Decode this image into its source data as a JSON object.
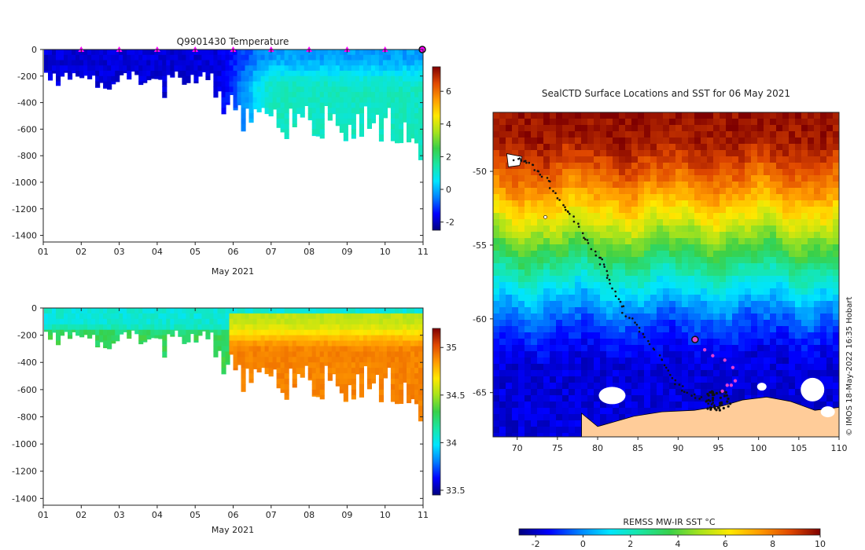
{
  "colors": {
    "jet": [
      "#00007f",
      "#0000ff",
      "#0080ff",
      "#00e5ff",
      "#19e6a5",
      "#38d04a",
      "#a6e31c",
      "#ffe800",
      "#ff9a00",
      "#e04800",
      "#7f0000"
    ],
    "land": "#ffcc99",
    "track": "#111111",
    "marker": "#ff00ff",
    "seal": "#e040d0"
  },
  "chart_data": [
    {
      "type": "heatmap",
      "id": "temperature-section",
      "title": "Q9901430  Temperature",
      "xlabel": "May 2021",
      "x_ticks": [
        "01",
        "02",
        "03",
        "04",
        "05",
        "06",
        "07",
        "08",
        "09",
        "10",
        "11"
      ],
      "xlim": [
        1,
        11
      ],
      "y_ticks": [
        "0",
        "-200",
        "-400",
        "-600",
        "-800",
        "-1000",
        "-1200",
        "-1400"
      ],
      "ylim": [
        -1450,
        0
      ],
      "colorbar": {
        "ticks": [
          "-2",
          "0",
          "2",
          "4",
          "6"
        ],
        "range": [
          -2.5,
          7.5
        ]
      },
      "marker_days": [
        2,
        3,
        4,
        5,
        6,
        7,
        8,
        9,
        10
      ],
      "latest_day": 10.98
    },
    {
      "type": "heatmap",
      "id": "salinity-section",
      "xlabel": "May 2021",
      "x_ticks": [
        "01",
        "02",
        "03",
        "04",
        "05",
        "06",
        "07",
        "08",
        "09",
        "10",
        "11"
      ],
      "xlim": [
        1,
        11
      ],
      "y_ticks": [
        "0",
        "-200",
        "-400",
        "-600",
        "-800",
        "-1000",
        "-1200",
        "-1400"
      ],
      "ylim": [
        -1450,
        0
      ],
      "colorbar": {
        "ticks": [
          "33.5",
          "34",
          "34.5",
          "35"
        ],
        "range": [
          33.45,
          35.2
        ]
      }
    },
    {
      "type": "heatmap",
      "id": "sst-map",
      "title": "SealCTD Surface Locations and SST for 06 May 2021",
      "x_ticks": [
        "70",
        "75",
        "80",
        "85",
        "90",
        "95",
        "100",
        "105",
        "110"
      ],
      "xlim": [
        67,
        110
      ],
      "y_ticks": [
        "-50",
        "-55",
        "-60",
        "-65"
      ],
      "ylim": [
        -68,
        -46
      ],
      "colorbar": {
        "label": "REMSS MW-IR SST °C",
        "ticks": [
          "-2",
          "0",
          "2",
          "4",
          "6",
          "8",
          "10"
        ],
        "range": [
          -2.7,
          10
        ]
      },
      "track": [
        [
          69.8,
          -49.1
        ],
        [
          71,
          -49.3
        ],
        [
          72.5,
          -49.9
        ],
        [
          74,
          -50.8
        ],
        [
          75.5,
          -52.2
        ],
        [
          77,
          -53.2
        ],
        [
          78.5,
          -54.6
        ],
        [
          80,
          -55.8
        ],
        [
          81,
          -56.7
        ],
        [
          82,
          -58.1
        ],
        [
          83.3,
          -59.5
        ],
        [
          85,
          -60.6
        ],
        [
          87,
          -62.0
        ],
        [
          88.5,
          -63.3
        ],
        [
          90,
          -64.5
        ],
        [
          92,
          -65.2
        ],
        [
          94,
          -65.7
        ],
        [
          95,
          -66.1
        ]
      ],
      "recent_positions": [
        [
          93.3,
          -62.1
        ],
        [
          94.3,
          -62.5
        ],
        [
          95.8,
          -62.8
        ],
        [
          96.8,
          -63.3
        ],
        [
          97.1,
          -64.2
        ],
        [
          96.6,
          -64.5
        ],
        [
          96.1,
          -64.5
        ],
        [
          95.5,
          -64.9
        ]
      ],
      "seal_position": [
        92.1,
        -61.4
      ]
    }
  ],
  "credit": "© IMOS 18-May-2022 16:35 Hobart"
}
